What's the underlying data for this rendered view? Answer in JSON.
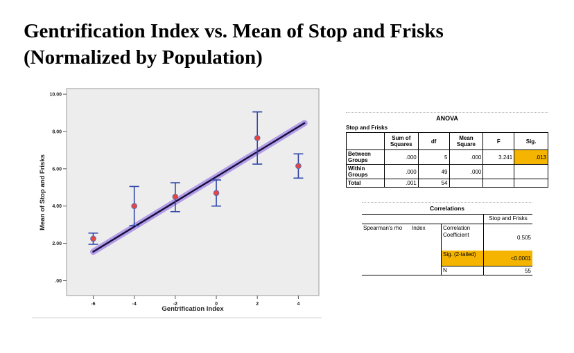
{
  "slide": {
    "title_line1": "Gentrification Index vs. Mean of Stop and Frisks",
    "title_line2": "(Normalized by Population)"
  },
  "chart_data": {
    "type": "scatter",
    "xlabel": "Gentrification Index",
    "ylabel": "Mean of Stop and Frisks",
    "xlim": [
      -7.3,
      5.0
    ],
    "ylim": [
      -0.8,
      10.3
    ],
    "x_ticks": [
      -6,
      -4,
      -2,
      0,
      2,
      4
    ],
    "x_tick_labels": [
      "-6",
      "-4",
      "-2",
      "0",
      "2",
      "4"
    ],
    "y_ticks": [
      0,
      2,
      4,
      6,
      8,
      10
    ],
    "y_tick_labels": [
      ".00",
      "2.00",
      "4.00",
      "6.00",
      "8.00",
      "10.00"
    ],
    "grid": false,
    "points": [
      {
        "x": -6,
        "y": 2.25,
        "err_low": 1.95,
        "err_high": 2.55
      },
      {
        "x": -4,
        "y": 4.0,
        "err_low": 2.95,
        "err_high": 5.05
      },
      {
        "x": -2,
        "y": 4.5,
        "err_low": 3.7,
        "err_high": 5.25
      },
      {
        "x": 0,
        "y": 4.7,
        "err_low": 4.0,
        "err_high": 5.4
      },
      {
        "x": 2,
        "y": 7.65,
        "err_low": 6.25,
        "err_high": 9.05
      },
      {
        "x": 4,
        "y": 6.15,
        "err_low": 5.5,
        "err_high": 6.8
      }
    ],
    "fit_line": {
      "x1": -6,
      "y1": 1.55,
      "x2": 4.3,
      "y2": 8.45
    },
    "colors": {
      "plot_bg": "#ededed",
      "marker": "#e8463c",
      "marker_edge": "#5b68b5",
      "error_bar": "#2e46a8",
      "fit_line": "#15103a",
      "fit_glow": "#a98ee8"
    }
  },
  "anova": {
    "title": "ANOVA",
    "subtitle": "Stop and Frisks",
    "headers": [
      "",
      "Sum of Squares",
      "df",
      "Mean Square",
      "F",
      "Sig."
    ],
    "rows": [
      {
        "label": "Between Groups",
        "ss": ".000",
        "df": "5",
        "ms": ".000",
        "f": "3.241",
        "sig": ".013"
      },
      {
        "label": "Within Groups",
        "ss": ".000",
        "df": "49",
        "ms": ".000",
        "f": "",
        "sig": ""
      },
      {
        "label": "Total",
        "ss": ".001",
        "df": "54",
        "ms": "",
        "f": "",
        "sig": ""
      }
    ],
    "highlight_color": "#f5b400"
  },
  "correlations": {
    "title": "Correlations",
    "column_header": "Stop and Frisks",
    "row_group": "Spearman's rho",
    "row_var": "Index",
    "stats": [
      {
        "label": "Correlation Coefficient",
        "value": "0.505"
      },
      {
        "label": "Sig. (2-tailed)",
        "value": "<0.0001"
      },
      {
        "label": "N",
        "value": "55"
      }
    ]
  }
}
